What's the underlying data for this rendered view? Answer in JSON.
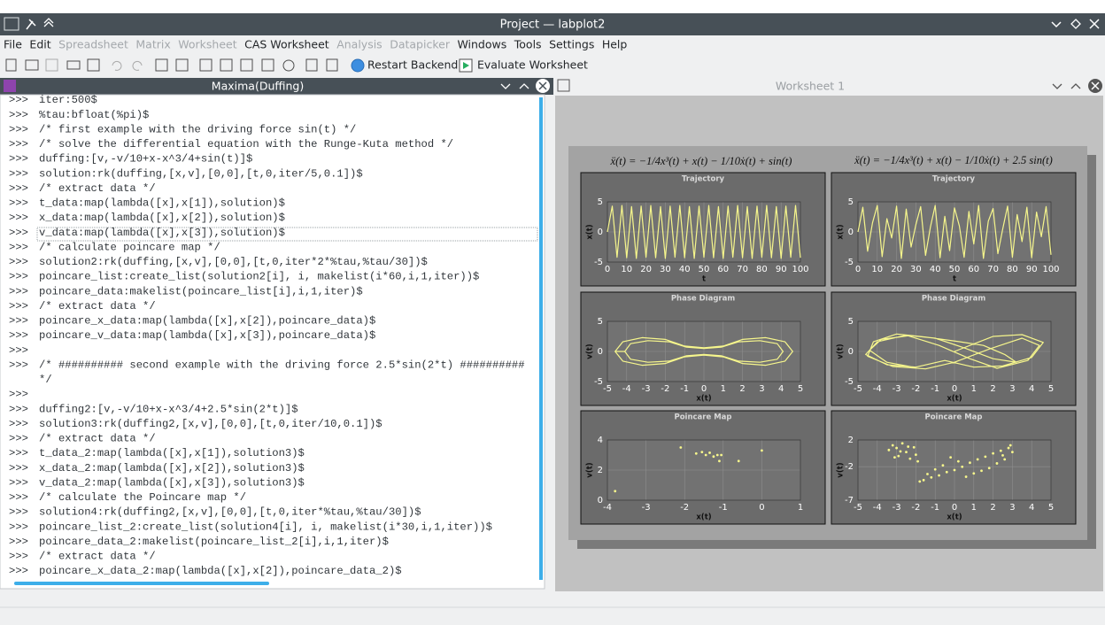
{
  "window": {
    "title": "Project — labplot2"
  },
  "menu": [
    {
      "label": "File",
      "enabled": true
    },
    {
      "label": "Edit",
      "enabled": true
    },
    {
      "label": "Spreadsheet",
      "enabled": false
    },
    {
      "label": "Matrix",
      "enabled": false
    },
    {
      "label": "Worksheet",
      "enabled": false
    },
    {
      "label": "CAS Worksheet",
      "enabled": true
    },
    {
      "label": "Analysis",
      "enabled": false
    },
    {
      "label": "Datapicker",
      "enabled": false
    },
    {
      "label": "Windows",
      "enabled": true
    },
    {
      "label": "Tools",
      "enabled": true
    },
    {
      "label": "Settings",
      "enabled": true
    },
    {
      "label": "Help",
      "enabled": true
    }
  ],
  "toolbar": [
    "Restart Backend",
    "Evaluate Worksheet"
  ],
  "left_panel": {
    "title": "Maxima(Duffing)",
    "rows": [
      {
        "prompt": ">>>",
        "code": "iter:500$"
      },
      {
        "prompt": ">>>",
        "code": "%tau:bfloat(%pi)$"
      },
      {
        "prompt": ">>>",
        "code": "/* first example with the driving force sin(t) */"
      },
      {
        "prompt": ">>>",
        "code": "/* solve the differential equation with the Runge-Kuta method */"
      },
      {
        "prompt": ">>>",
        "code": "duffing:[v,-v/10+x-x^3/4+sin(t)]$"
      },
      {
        "prompt": ">>>",
        "code": "solution:rk(duffing,[x,v],[0,0],[t,0,iter/5,0.1])$"
      },
      {
        "prompt": ">>>",
        "code": "/* extract data */"
      },
      {
        "prompt": ">>>",
        "code": "t_data:map(lambda([x],x[1]),solution)$"
      },
      {
        "prompt": ">>>",
        "code": "x_data:map(lambda([x],x[2]),solution)$"
      },
      {
        "prompt": ">>>",
        "code": "v_data:map(lambda([x],x[3]),solution)$"
      },
      {
        "prompt": ">>>",
        "code": "/* calculate poincare map */"
      },
      {
        "prompt": ">>>",
        "code": "solution2:rk(duffing,[x,v],[0,0],[t,0,iter*2*%tau,%tau/30])$"
      },
      {
        "prompt": ">>>",
        "code": "poincare_list:create_list(solution2[i], i, makelist(i*60,i,1,iter))$"
      },
      {
        "prompt": ">>>",
        "code": "poincare_data:makelist(poincare_list[i],i,1,iter)$"
      },
      {
        "prompt": ">>>",
        "code": "/* extract data */"
      },
      {
        "prompt": ">>>",
        "code": "poincare_x_data:map(lambda([x],x[2]),poincare_data)$"
      },
      {
        "prompt": ">>>",
        "code": "poincare_v_data:map(lambda([x],x[3]),poincare_data)$"
      },
      {
        "prompt": ">>>"
      },
      {
        "prompt": ">>>",
        "code": "/* ########## second example with the driving force 2.5*sin(2*t) ##########"
      },
      {
        "code": "*/"
      },
      {
        "prompt": ">>>"
      },
      {
        "prompt": ">>>",
        "code": "duffing2:[v,-v/10+x-x^3/4+2.5*sin(2*t)]$"
      },
      {
        "prompt": ">>>",
        "code": "solution3:rk(duffing2,[x,v],[0,0],[t,0,iter/10,0.1])$"
      },
      {
        "prompt": ">>>",
        "code": "/* extract data */"
      },
      {
        "prompt": ">>>",
        "code": "t_data_2:map(lambda([x],x[1]),solution3)$"
      },
      {
        "prompt": ">>>",
        "code": "x_data_2:map(lambda([x],x[2]),solution3)$"
      },
      {
        "prompt": ">>>",
        "code": "v_data_2:map(lambda([x],x[3]),solution3)$"
      },
      {
        "prompt": ">>>",
        "code": "/* calculate the Poincare map */"
      },
      {
        "prompt": ">>>",
        "code": "solution4:rk(duffing2,[x,v],[0,0],[t,0,iter*%tau,%tau/30])$"
      },
      {
        "prompt": ">>>",
        "code": "poincare_list_2:create_list(solution4[i], i, makelist(i*30,i,1,iter))$"
      },
      {
        "prompt": ">>>",
        "code": "poincare_data_2:makelist(poincare_list_2[i],i,1,iter)$"
      },
      {
        "prompt": ">>>",
        "code": "/* extract data */"
      },
      {
        "prompt": ">>>",
        "code": "poincare_x_data_2:map(lambda([x],x[2]),poincare_data_2)$"
      }
    ]
  },
  "right_panel": {
    "title": "Worksheet 1",
    "equations": [
      "ẍ(t) = −1/4x³(t) + x(t) − 1/10ẋ(t) + sin(t)",
      "ẍ(t) = −1/4x³(t) + x(t) − 1/10ẋ(t) + 2.5 sin(t)"
    ]
  },
  "chart_data": [
    {
      "type": "line",
      "title": "Trajectory",
      "xlabel": "t",
      "ylabel": "x(t)",
      "color": "#f6f68c",
      "x": [
        0,
        2.5,
        5,
        7.5,
        10,
        12.5,
        15,
        17.5,
        20,
        22.5,
        25,
        27.5,
        30,
        32.5,
        35,
        37.5,
        40,
        42.5,
        45,
        47.5,
        50,
        52.5,
        55,
        57.5,
        60,
        62.5,
        65,
        67.5,
        70,
        72.5,
        75,
        77.5,
        80,
        82.5,
        85,
        87.5,
        90,
        92.5,
        95,
        97.5,
        100
      ],
      "values": [
        0,
        4.3,
        -4.2,
        4.4,
        -4.3,
        4.2,
        -4.4,
        4.3,
        -4.2,
        4.4,
        -4.3,
        4.2,
        -4.4,
        4.3,
        -4.2,
        4.4,
        -4.3,
        4.2,
        -4.4,
        4.3,
        -4.2,
        4.4,
        -4.3,
        4.2,
        -4.4,
        4.3,
        -4.2,
        4.4,
        -4.3,
        4.2,
        -4.4,
        4.3,
        -4.2,
        4.4,
        -4.3,
        4.2,
        -4.4,
        4.3,
        -4.2,
        4.4,
        -4.3
      ],
      "xlim": [
        0,
        100
      ],
      "ylim": [
        -5,
        5
      ],
      "xticks": [
        0,
        10,
        20,
        30,
        40,
        50,
        60,
        70,
        80,
        90,
        100
      ],
      "yticks": [
        -5,
        0,
        5
      ]
    },
    {
      "type": "line",
      "title": "Trajectory",
      "xlabel": "t",
      "ylabel": "x(t)",
      "color": "#f6f68c",
      "x": [
        0,
        2.5,
        5,
        7.5,
        10,
        12.5,
        15,
        17.5,
        20,
        22.5,
        25,
        27.5,
        30,
        32.5,
        35,
        37.5,
        40,
        42.5,
        45,
        47.5,
        50,
        52.5,
        55,
        57.5,
        60,
        62.5,
        65,
        67.5,
        70,
        72.5,
        75,
        77.5,
        80,
        82.5,
        85,
        87.5,
        90,
        92.5,
        95,
        97.5,
        100
      ],
      "values": [
        0,
        4.1,
        -3.2,
        1.5,
        4.4,
        -4.1,
        2.2,
        -1.0,
        4.3,
        -4.4,
        3.8,
        -2.5,
        1.2,
        4.2,
        -3.9,
        0.8,
        4.4,
        -4.3,
        2.6,
        -3.1,
        4.0,
        1.0,
        -4.2,
        3.4,
        -2.0,
        4.4,
        -4.4,
        1.8,
        3.9,
        -3.6,
        0.5,
        4.3,
        -4.2,
        2.9,
        -1.6,
        4.1,
        -4.3,
        3.3,
        -0.8,
        4.2,
        -3.8
      ],
      "xlim": [
        0,
        100
      ],
      "ylim": [
        -5,
        5
      ],
      "xticks": [
        0,
        10,
        20,
        30,
        40,
        50,
        60,
        70,
        80,
        90,
        100
      ],
      "yticks": [
        -5,
        0,
        5
      ]
    },
    {
      "type": "line",
      "title": "Phase Diagram",
      "xlabel": "x(t)",
      "ylabel": "v(t)",
      "color": "#f6f68c",
      "x": [
        -4.6,
        -4.2,
        -3.2,
        -2,
        -1,
        0,
        1,
        2,
        3.2,
        4.2,
        4.6,
        4.2,
        3.2,
        2,
        1,
        0,
        -1,
        -2,
        -3.2,
        -4.2,
        -4.6,
        -4.1,
        -3.8,
        -2.9,
        -1.8,
        -0.9,
        0,
        0.9,
        1.8,
        2.9,
        3.8,
        4.1,
        3.8,
        2.9,
        1.8,
        0.9,
        0,
        -0.9,
        -1.8,
        -2.9,
        -3.8,
        -4.1
      ],
      "values": [
        0,
        1.6,
        2.3,
        2.0,
        0.9,
        0.6,
        0.9,
        2.0,
        2.3,
        1.6,
        0,
        -1.6,
        -2.3,
        -2.0,
        -0.9,
        -0.6,
        -0.9,
        -2.0,
        -2.3,
        -1.6,
        0,
        0,
        1.3,
        1.8,
        1.6,
        0.7,
        0.5,
        0.7,
        1.6,
        1.8,
        1.3,
        0,
        -1.3,
        -1.8,
        -1.6,
        -0.7,
        -0.5,
        -0.7,
        -1.6,
        -1.8,
        -1.3,
        0
      ],
      "xlim": [
        -5,
        5
      ],
      "ylim": [
        -5,
        5
      ],
      "xticks": [
        -5,
        -4,
        -3,
        -2,
        -1,
        0,
        1,
        2,
        3,
        4,
        5
      ],
      "yticks": [
        -5,
        0,
        5
      ]
    },
    {
      "type": "line",
      "title": "Phase Diagram",
      "xlabel": "x(t)",
      "ylabel": "v(t)",
      "color": "#f6f68c",
      "x": [
        0,
        2,
        3.5,
        4.6,
        4,
        2.5,
        1,
        -0.5,
        -2,
        -3.5,
        -4.6,
        -4,
        -2.5,
        -1,
        0.5,
        2,
        3.2,
        2.6,
        1.5,
        0.3,
        -1.5,
        -3,
        -4.2,
        -4.5,
        -3.2,
        -1.5,
        0,
        1.8,
        3.5,
        4.4,
        3.8,
        2.2,
        0.8,
        -0.8,
        -2.4,
        -3.8,
        -4.4,
        -3.5,
        -2
      ],
      "values": [
        0,
        2.5,
        2.8,
        1.5,
        -1,
        -2.4,
        -2.6,
        -1.5,
        -2.6,
        -2.2,
        -0.5,
        1.6,
        2.7,
        2.2,
        0.6,
        -1.2,
        -1.8,
        -0.5,
        1.0,
        1.6,
        2.4,
        2.9,
        1.6,
        -0.8,
        -2.5,
        -2.9,
        -1.8,
        0.4,
        2.2,
        1.0,
        -1.5,
        -2.8,
        -1.2,
        1.0,
        2.6,
        2.0,
        0.2,
        -1.8,
        -2.7
      ],
      "xlim": [
        -5,
        5
      ],
      "ylim": [
        -5,
        5
      ],
      "xticks": [
        -5,
        -4,
        -3,
        -2,
        -1,
        0,
        1,
        2,
        3,
        4,
        5
      ],
      "yticks": [
        -5,
        0,
        5
      ]
    },
    {
      "type": "scatter",
      "title": "Poincare Map",
      "xlabel": "x(t)",
      "ylabel": "v(t)",
      "color": "#f6f68c",
      "x": [
        -3.8,
        -2.1,
        -1.7,
        -1.55,
        -1.45,
        -1.35,
        -1.25,
        -1.15,
        -1.1,
        -1.05,
        -0.6,
        0
      ],
      "values": [
        0.6,
        3.5,
        3.1,
        3.2,
        3.0,
        3.15,
        2.9,
        3.0,
        2.6,
        3.0,
        2.6,
        3.3
      ],
      "xlim": [
        -4,
        1
      ],
      "ylim": [
        0,
        4
      ],
      "xticks": [
        -4,
        -3,
        -2,
        -1,
        0,
        1
      ],
      "yticks": [
        0,
        2,
        4
      ]
    },
    {
      "type": "scatter",
      "title": "Poincare Map",
      "xlabel": "x(t)",
      "ylabel": "v(t)",
      "color": "#f6f68c",
      "x": [
        -3.4,
        -3.2,
        -3.0,
        -2.9,
        -2.7,
        -2.5,
        -2.3,
        -2.1,
        -1.9,
        -3.1,
        -2.8,
        -2.4,
        -2.0,
        -1.6,
        -1.2,
        -0.8,
        -0.4,
        0,
        0.4,
        0.8,
        1.2,
        1.6,
        2.0,
        2.4,
        2.8,
        3.0,
        2.6,
        2.2,
        1.8,
        1.4,
        1.0,
        0.6,
        0.2,
        -0.2,
        -0.6,
        -1.0,
        -1.4,
        -1.8,
        2.9,
        2.5
      ],
      "values": [
        0.5,
        1.2,
        0.8,
        -0.4,
        1.5,
        0.2,
        -0.8,
        0.9,
        -1.2,
        -0.6,
        0.3,
        1.0,
        -0.2,
        -4.0,
        -3.6,
        -3.3,
        -2.8,
        -2.5,
        -2.0,
        -1.4,
        -0.9,
        -0.5,
        0,
        0.4,
        0.8,
        0.2,
        -0.9,
        -1.5,
        -2.2,
        -2.6,
        -3.0,
        -3.5,
        -1.2,
        -0.6,
        -1.8,
        -2.4,
        -3.1,
        -4.2,
        1.2,
        -0.3
      ],
      "xlim": [
        -5,
        5
      ],
      "ylim": [
        -7,
        2
      ],
      "xticks": [
        -5,
        -4,
        -3,
        -2,
        -1,
        0,
        1,
        2,
        3,
        4,
        5
      ],
      "yticks": [
        -7,
        -2,
        2
      ]
    }
  ]
}
